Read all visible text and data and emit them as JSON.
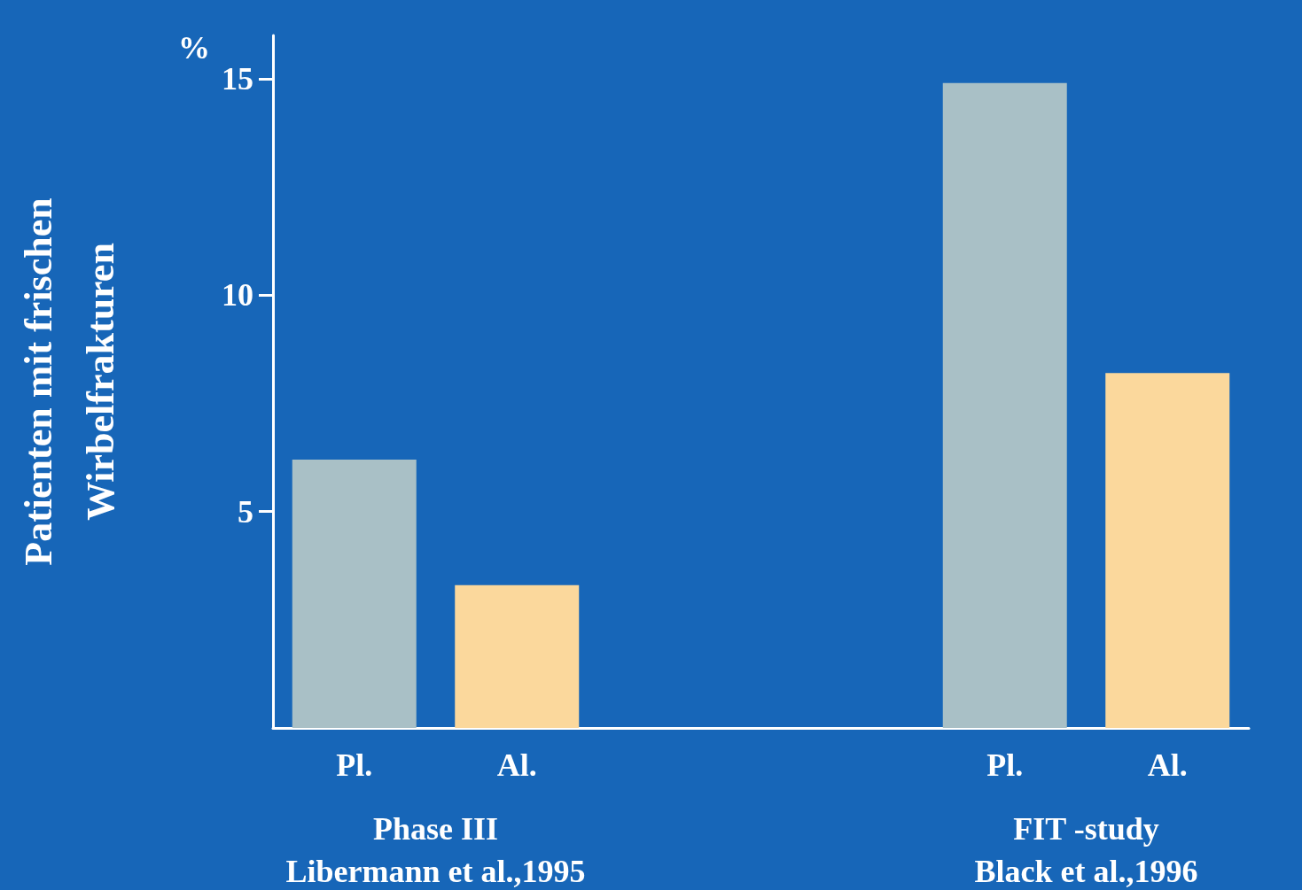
{
  "chart_data": {
    "type": "bar",
    "ylabel": "Patienten mit frischen\nWirbelfrakturen",
    "categories": [
      "Pl.",
      "Al.",
      null,
      null,
      "Pl.",
      "Al."
    ],
    "values": [
      6.2,
      3.3,
      null,
      null,
      14.9,
      8.2
    ],
    "colors": [
      "#a9c0c6",
      "#fbd89c",
      null,
      null,
      "#a9c0c6",
      "#fbd89c"
    ],
    "ylim": [
      0,
      16
    ],
    "yticks": [
      5,
      10,
      15
    ],
    "grid": false,
    "annotations": [
      "%",
      "Phase III\nLibermann et al.,1995",
      "FIT -study\nBlack et al.,1996"
    ]
  }
}
